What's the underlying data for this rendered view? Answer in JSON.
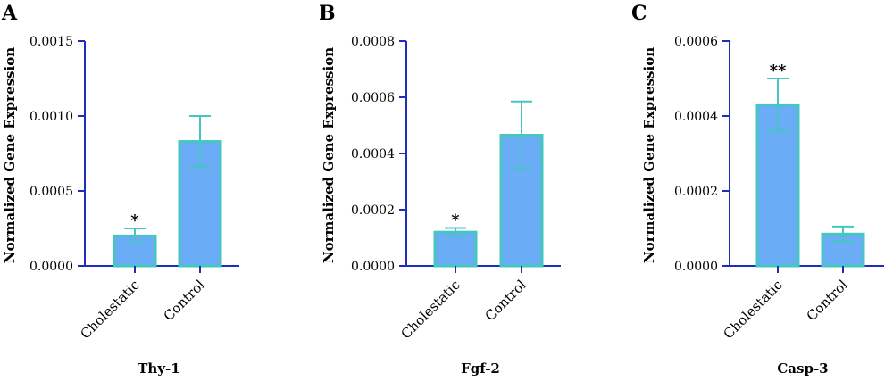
{
  "colors": {
    "axis": "#1f2dbb",
    "bar_fill": "#6aacf5",
    "bar_stroke": "#45c6c0",
    "error": "#45c6c0"
  },
  "chart_data": [
    {
      "panel": "A",
      "type": "bar",
      "title": "Thy-1",
      "ylabel": "Normalized Gene Expression",
      "categories": [
        "Cholestatic",
        "Control"
      ],
      "values": [
        0.0002,
        0.00083
      ],
      "errors": [
        5e-05,
        0.00017
      ],
      "significance": [
        "*",
        ""
      ],
      "ylim": [
        0,
        0.0015
      ],
      "yticks": [
        "0.0000",
        "0.0005",
        "0.0010",
        "0.0015"
      ]
    },
    {
      "panel": "B",
      "type": "bar",
      "title": "Fgf-2",
      "ylabel": "Normalized Gene Expression",
      "categories": [
        "Cholestatic",
        "Control"
      ],
      "values": [
        0.00012,
        0.000465
      ],
      "errors": [
        1.5e-05,
        0.00012
      ],
      "significance": [
        "*",
        ""
      ],
      "ylim": [
        0,
        0.0008
      ],
      "yticks": [
        "0.0000",
        "0.0002",
        "0.0004",
        "0.0006",
        "0.0008"
      ]
    },
    {
      "panel": "C",
      "type": "bar",
      "title": "Casp-3",
      "ylabel": "Normalized Gene Expression",
      "categories": [
        "Cholestatic",
        "Control"
      ],
      "values": [
        0.00043,
        8.5e-05
      ],
      "errors": [
        7e-05,
        2e-05
      ],
      "significance": [
        "**",
        ""
      ],
      "ylim": [
        0,
        0.0006
      ],
      "yticks": [
        "0.0000",
        "0.0002",
        "0.0004",
        "0.0006"
      ]
    }
  ]
}
